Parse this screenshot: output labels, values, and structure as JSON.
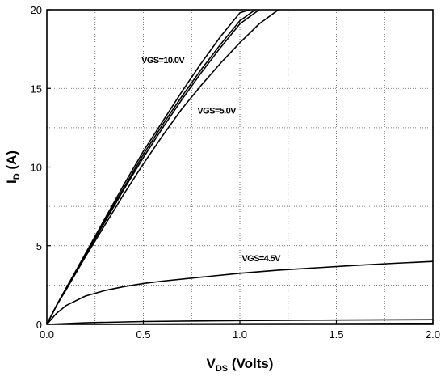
{
  "chart_data": {
    "type": "line",
    "xlabel": {
      "main": "V",
      "sub": "DS",
      "suffix": " (Volts)"
    },
    "ylabel": {
      "main": "I",
      "sub": "D",
      "suffix": " (A)"
    },
    "xlim": [
      0.0,
      2.0
    ],
    "ylim": [
      0,
      20
    ],
    "xticks": [
      0.0,
      0.5,
      1.0,
      1.5,
      2.0
    ],
    "xtick_labels": [
      "0.0",
      "0.5",
      "1.0",
      "1.5",
      "2.0"
    ],
    "yticks": [
      0,
      5,
      10,
      15,
      20
    ],
    "ytick_labels": [
      "0",
      "5",
      "10",
      "15",
      "20"
    ],
    "grid": true,
    "annotations": [
      {
        "text": "VGS=10.0V",
        "x": 0.49,
        "y": 16.6
      },
      {
        "text": "VGS=5.0V",
        "x": 0.78,
        "y": 13.4
      },
      {
        "text": "VGS=4.5V",
        "x": 1.01,
        "y": 4.0
      }
    ],
    "series": [
      {
        "x": [
          0,
          0.05,
          0.1,
          0.2,
          0.3,
          0.4,
          0.5,
          0.6,
          0.7,
          0.8,
          0.9,
          1.0,
          1.05
        ],
        "y": [
          0,
          1.2,
          2.3,
          4.5,
          6.7,
          8.9,
          11.0,
          12.9,
          14.8,
          16.6,
          18.3,
          19.8,
          20.0
        ]
      },
      {
        "x": [
          0,
          0.05,
          0.1,
          0.2,
          0.3,
          0.4,
          0.5,
          0.6,
          0.7,
          0.8,
          0.9,
          1.0,
          1.08
        ],
        "y": [
          0,
          1.2,
          2.3,
          4.4,
          6.6,
          8.7,
          10.8,
          12.7,
          14.5,
          16.2,
          17.8,
          19.3,
          20.0
        ]
      },
      {
        "x": [
          0,
          0.05,
          0.1,
          0.2,
          0.3,
          0.4,
          0.5,
          0.6,
          0.7,
          0.8,
          0.9,
          1.0,
          1.1
        ],
        "y": [
          0,
          1.2,
          2.3,
          4.4,
          6.5,
          8.6,
          10.6,
          12.5,
          14.3,
          16.0,
          17.6,
          19.1,
          20.0
        ]
      },
      {
        "x": [
          0,
          0.05,
          0.1,
          0.2,
          0.3,
          0.4,
          0.5,
          0.6,
          0.7,
          0.8,
          0.9,
          1.0,
          1.1,
          1.2
        ],
        "y": [
          0,
          1.2,
          2.2,
          4.3,
          6.3,
          8.3,
          10.2,
          12.0,
          13.7,
          15.2,
          16.6,
          17.9,
          19.1,
          20.0
        ]
      },
      {
        "x": [
          0,
          0.05,
          0.1,
          0.2,
          0.3,
          0.4,
          0.5,
          0.6,
          0.8,
          1.0,
          1.2,
          1.4,
          1.6,
          1.8,
          2.0
        ],
        "y": [
          0,
          0.7,
          1.2,
          1.8,
          2.15,
          2.4,
          2.6,
          2.75,
          3.0,
          3.25,
          3.45,
          3.6,
          3.75,
          3.88,
          4.0
        ]
      },
      {
        "x": [
          0,
          0.2,
          0.5,
          1.0,
          1.5,
          2.0
        ],
        "y": [
          0,
          0.1,
          0.18,
          0.24,
          0.27,
          0.3
        ]
      },
      {
        "x": [
          0,
          0.5,
          1.0,
          1.5,
          2.0
        ],
        "y": [
          0,
          0.02,
          0.04,
          0.05,
          0.06
        ]
      }
    ]
  }
}
